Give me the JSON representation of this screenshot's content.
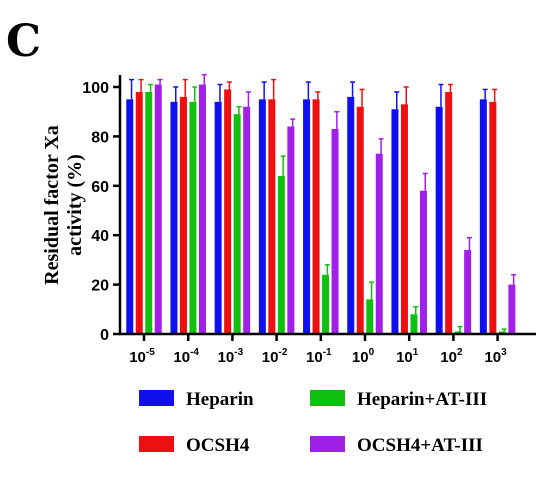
{
  "panel_label": "C",
  "chart_data": {
    "type": "bar",
    "ylabel_line1": "Residual factor Xa",
    "ylabel_line2": "activity (%)",
    "xlabel": "",
    "ylim": [
      0,
      110
    ],
    "yticks": [
      0,
      20,
      40,
      60,
      80,
      100
    ],
    "categories": [
      {
        "base": "10",
        "exp": "-5"
      },
      {
        "base": "10",
        "exp": "-4"
      },
      {
        "base": "10",
        "exp": "-3"
      },
      {
        "base": "10",
        "exp": "-2"
      },
      {
        "base": "10",
        "exp": "-1"
      },
      {
        "base": "10",
        "exp": "0"
      },
      {
        "base": "10",
        "exp": "1"
      },
      {
        "base": "10",
        "exp": "2"
      },
      {
        "base": "10",
        "exp": "3"
      }
    ],
    "series": [
      {
        "name": "Heparin",
        "color": "#1010ee",
        "values": [
          95,
          94,
          94,
          95,
          95,
          96,
          91,
          92,
          95
        ],
        "errors": [
          8,
          6,
          7,
          7,
          7,
          6,
          7,
          9,
          4
        ]
      },
      {
        "name": "OCSH4",
        "color": "#ee1010",
        "values": [
          98,
          96,
          99,
          95,
          95,
          92,
          93,
          98,
          94
        ],
        "errors": [
          5,
          7,
          3,
          8,
          3,
          7,
          7,
          3,
          5
        ]
      },
      {
        "name": "Heparin+AT-III",
        "color": "#10c010",
        "values": [
          98,
          94,
          89,
          64,
          24,
          14,
          8,
          1,
          1
        ],
        "errors": [
          3,
          6,
          3,
          8,
          4,
          7,
          3,
          2,
          1
        ]
      },
      {
        "name": "OCSH4+AT-III",
        "color": "#a020e8",
        "values": [
          101,
          101,
          92,
          84,
          83,
          73,
          58,
          34,
          20
        ],
        "errors": [
          2,
          4,
          6,
          3,
          7,
          6,
          7,
          5,
          4
        ]
      }
    ],
    "legend_position": "bottom"
  }
}
